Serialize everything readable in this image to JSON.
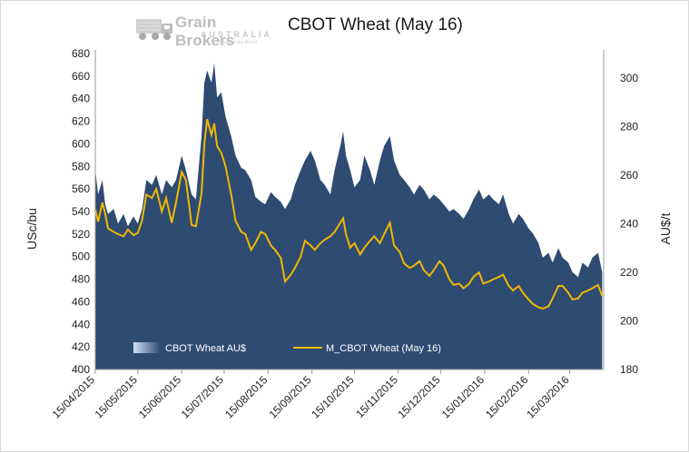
{
  "logo": {
    "name": "Grain Brokers",
    "sub": "AUSTRALIA",
    "tagline": "Proud of the World"
  },
  "chart_data": {
    "type": "area",
    "title": "CBOT Wheat (May 16)",
    "ylabel_left": "USc/bu",
    "ylabel_right": "AU$/t",
    "ylim_left": [
      400,
      680
    ],
    "ylim_right": [
      180,
      310
    ],
    "yticks_left": [
      400,
      420,
      440,
      460,
      480,
      500,
      520,
      540,
      560,
      580,
      600,
      620,
      640,
      660,
      680
    ],
    "yticks_right": [
      180,
      200,
      220,
      240,
      260,
      280,
      300
    ],
    "xticks": [
      "15/04/2015",
      "15/05/2015",
      "15/06/2015",
      "15/07/2015",
      "15/08/2015",
      "15/09/2015",
      "15/10/2015",
      "15/11/2015",
      "15/12/2015",
      "15/01/2016",
      "15/02/2016",
      "15/03/2016"
    ],
    "xlim": [
      "2015-04-15",
      "2016-04-08"
    ],
    "grid": false,
    "legend_position": "bottom-left",
    "series": [
      {
        "name": "CBOT Wheat AU$",
        "axis": "right",
        "color": "#2e4b72",
        "values": [
          [
            "2015-04-15",
            262
          ],
          [
            "2015-04-17",
            252
          ],
          [
            "2015-04-20",
            258
          ],
          [
            "2015-04-22",
            248
          ],
          [
            "2015-04-24",
            244
          ],
          [
            "2015-04-28",
            246
          ],
          [
            "2015-05-01",
            240
          ],
          [
            "2015-05-05",
            244
          ],
          [
            "2015-05-08",
            239
          ],
          [
            "2015-05-12",
            243
          ],
          [
            "2015-05-15",
            240
          ],
          [
            "2015-05-18",
            246
          ],
          [
            "2015-05-21",
            258
          ],
          [
            "2015-05-25",
            256
          ],
          [
            "2015-05-28",
            260
          ],
          [
            "2015-06-01",
            252
          ],
          [
            "2015-06-04",
            258
          ],
          [
            "2015-06-08",
            255
          ],
          [
            "2015-06-11",
            258
          ],
          [
            "2015-06-15",
            268
          ],
          [
            "2015-06-18",
            262
          ],
          [
            "2015-06-22",
            252
          ],
          [
            "2015-06-25",
            250
          ],
          [
            "2015-06-29",
            276
          ],
          [
            "2015-07-01",
            298
          ],
          [
            "2015-07-03",
            303
          ],
          [
            "2015-07-06",
            298
          ],
          [
            "2015-07-08",
            306
          ],
          [
            "2015-07-10",
            292
          ],
          [
            "2015-07-13",
            294
          ],
          [
            "2015-07-16",
            284
          ],
          [
            "2015-07-20",
            276
          ],
          [
            "2015-07-23",
            268
          ],
          [
            "2015-07-27",
            263
          ],
          [
            "2015-07-30",
            262
          ],
          [
            "2015-08-03",
            258
          ],
          [
            "2015-08-06",
            251
          ],
          [
            "2015-08-10",
            249
          ],
          [
            "2015-08-13",
            248
          ],
          [
            "2015-08-17",
            253
          ],
          [
            "2015-08-20",
            251
          ],
          [
            "2015-08-24",
            249
          ],
          [
            "2015-08-27",
            246
          ],
          [
            "2015-08-31",
            250
          ],
          [
            "2015-09-03",
            256
          ],
          [
            "2015-09-07",
            262
          ],
          [
            "2015-09-10",
            266
          ],
          [
            "2015-09-14",
            270
          ],
          [
            "2015-09-17",
            266
          ],
          [
            "2015-09-21",
            258
          ],
          [
            "2015-09-24",
            256
          ],
          [
            "2015-09-28",
            252
          ],
          [
            "2015-10-01",
            262
          ],
          [
            "2015-10-05",
            272
          ],
          [
            "2015-10-07",
            278
          ],
          [
            "2015-10-09",
            268
          ],
          [
            "2015-10-12",
            262
          ],
          [
            "2015-10-15",
            255
          ],
          [
            "2015-10-19",
            258
          ],
          [
            "2015-10-22",
            268
          ],
          [
            "2015-10-26",
            262
          ],
          [
            "2015-10-29",
            256
          ],
          [
            "2015-11-02",
            266
          ],
          [
            "2015-11-05",
            272
          ],
          [
            "2015-11-09",
            276
          ],
          [
            "2015-11-12",
            266
          ],
          [
            "2015-11-16",
            260
          ],
          [
            "2015-11-19",
            258
          ],
          [
            "2015-11-23",
            255
          ],
          [
            "2015-11-26",
            252
          ],
          [
            "2015-11-30",
            256
          ],
          [
            "2015-12-03",
            254
          ],
          [
            "2015-12-07",
            250
          ],
          [
            "2015-12-10",
            252
          ],
          [
            "2015-12-14",
            250
          ],
          [
            "2015-12-17",
            248
          ],
          [
            "2015-12-21",
            245
          ],
          [
            "2015-12-24",
            246
          ],
          [
            "2015-12-28",
            244
          ],
          [
            "2015-12-31",
            242
          ],
          [
            "2016-01-04",
            246
          ],
          [
            "2016-01-07",
            250
          ],
          [
            "2016-01-11",
            254
          ],
          [
            "2016-01-14",
            250
          ],
          [
            "2016-01-18",
            252
          ],
          [
            "2016-01-21",
            250
          ],
          [
            "2016-01-25",
            248
          ],
          [
            "2016-01-28",
            252
          ],
          [
            "2016-02-01",
            244
          ],
          [
            "2016-02-04",
            240
          ],
          [
            "2016-02-08",
            244
          ],
          [
            "2016-02-11",
            242
          ],
          [
            "2016-02-15",
            238
          ],
          [
            "2016-02-18",
            236
          ],
          [
            "2016-02-22",
            232
          ],
          [
            "2016-02-25",
            226
          ],
          [
            "2016-02-29",
            228
          ],
          [
            "2016-03-03",
            224
          ],
          [
            "2016-03-07",
            230
          ],
          [
            "2016-03-10",
            226
          ],
          [
            "2016-03-14",
            224
          ],
          [
            "2016-03-17",
            220
          ],
          [
            "2016-03-21",
            218
          ],
          [
            "2016-03-24",
            224
          ],
          [
            "2016-03-28",
            222
          ],
          [
            "2016-03-31",
            226
          ],
          [
            "2016-04-04",
            228
          ],
          [
            "2016-04-07",
            220
          ]
        ]
      },
      {
        "name": "M_CBOT Wheat (May 16)",
        "axis": "left",
        "color": "#f0b800",
        "values": [
          [
            "2015-04-15",
            542
          ],
          [
            "2015-04-17",
            531
          ],
          [
            "2015-04-20",
            548
          ],
          [
            "2015-04-22",
            538
          ],
          [
            "2015-04-24",
            525
          ],
          [
            "2015-04-28",
            522
          ],
          [
            "2015-05-01",
            520
          ],
          [
            "2015-05-05",
            518
          ],
          [
            "2015-05-08",
            524
          ],
          [
            "2015-05-12",
            519
          ],
          [
            "2015-05-15",
            521
          ],
          [
            "2015-05-18",
            532
          ],
          [
            "2015-05-21",
            555
          ],
          [
            "2015-05-25",
            552
          ],
          [
            "2015-05-28",
            560
          ],
          [
            "2015-06-01",
            540
          ],
          [
            "2015-06-04",
            552
          ],
          [
            "2015-06-08",
            530
          ],
          [
            "2015-06-11",
            548
          ],
          [
            "2015-06-15",
            575
          ],
          [
            "2015-06-18",
            568
          ],
          [
            "2015-06-22",
            528
          ],
          [
            "2015-06-25",
            527
          ],
          [
            "2015-06-29",
            556
          ],
          [
            "2015-07-01",
            600
          ],
          [
            "2015-07-03",
            622
          ],
          [
            "2015-07-06",
            608
          ],
          [
            "2015-07-08",
            618
          ],
          [
            "2015-07-10",
            598
          ],
          [
            "2015-07-13",
            592
          ],
          [
            "2015-07-16",
            580
          ],
          [
            "2015-07-20",
            555
          ],
          [
            "2015-07-23",
            532
          ],
          [
            "2015-07-27",
            522
          ],
          [
            "2015-07-30",
            520
          ],
          [
            "2015-08-03",
            506
          ],
          [
            "2015-08-06",
            512
          ],
          [
            "2015-08-10",
            522
          ],
          [
            "2015-08-13",
            520
          ],
          [
            "2015-08-17",
            510
          ],
          [
            "2015-08-20",
            506
          ],
          [
            "2015-08-24",
            499
          ],
          [
            "2015-08-27",
            478
          ],
          [
            "2015-08-31",
            484
          ],
          [
            "2015-09-03",
            490
          ],
          [
            "2015-09-07",
            500
          ],
          [
            "2015-09-10",
            514
          ],
          [
            "2015-09-14",
            510
          ],
          [
            "2015-09-17",
            506
          ],
          [
            "2015-09-21",
            512
          ],
          [
            "2015-09-24",
            515
          ],
          [
            "2015-09-28",
            518
          ],
          [
            "2015-10-01",
            522
          ],
          [
            "2015-10-05",
            530
          ],
          [
            "2015-10-07",
            534
          ],
          [
            "2015-10-09",
            520
          ],
          [
            "2015-10-12",
            508
          ],
          [
            "2015-10-15",
            512
          ],
          [
            "2015-10-19",
            502
          ],
          [
            "2015-10-22",
            508
          ],
          [
            "2015-10-26",
            514
          ],
          [
            "2015-10-29",
            518
          ],
          [
            "2015-11-02",
            512
          ],
          [
            "2015-11-05",
            520
          ],
          [
            "2015-11-09",
            530
          ],
          [
            "2015-11-12",
            510
          ],
          [
            "2015-11-16",
            504
          ],
          [
            "2015-11-19",
            494
          ],
          [
            "2015-11-23",
            490
          ],
          [
            "2015-11-26",
            492
          ],
          [
            "2015-11-30",
            496
          ],
          [
            "2015-12-03",
            488
          ],
          [
            "2015-12-07",
            483
          ],
          [
            "2015-12-10",
            488
          ],
          [
            "2015-12-14",
            496
          ],
          [
            "2015-12-17",
            492
          ],
          [
            "2015-12-21",
            480
          ],
          [
            "2015-12-24",
            475
          ],
          [
            "2015-12-28",
            476
          ],
          [
            "2015-12-31",
            472
          ],
          [
            "2016-01-04",
            476
          ],
          [
            "2016-01-07",
            482
          ],
          [
            "2016-01-11",
            486
          ],
          [
            "2016-01-14",
            476
          ],
          [
            "2016-01-18",
            478
          ],
          [
            "2016-01-21",
            480
          ],
          [
            "2016-01-25",
            482
          ],
          [
            "2016-01-28",
            484
          ],
          [
            "2016-02-01",
            474
          ],
          [
            "2016-02-04",
            470
          ],
          [
            "2016-02-08",
            474
          ],
          [
            "2016-02-11",
            468
          ],
          [
            "2016-02-15",
            462
          ],
          [
            "2016-02-18",
            458
          ],
          [
            "2016-02-22",
            455
          ],
          [
            "2016-02-25",
            454
          ],
          [
            "2016-02-29",
            456
          ],
          [
            "2016-03-03",
            463
          ],
          [
            "2016-03-07",
            474
          ],
          [
            "2016-03-10",
            474
          ],
          [
            "2016-03-14",
            468
          ],
          [
            "2016-03-17",
            462
          ],
          [
            "2016-03-21",
            463
          ],
          [
            "2016-03-24",
            468
          ],
          [
            "2016-03-28",
            470
          ],
          [
            "2016-03-31",
            472
          ],
          [
            "2016-04-04",
            475
          ],
          [
            "2016-04-07",
            465
          ]
        ]
      }
    ]
  }
}
